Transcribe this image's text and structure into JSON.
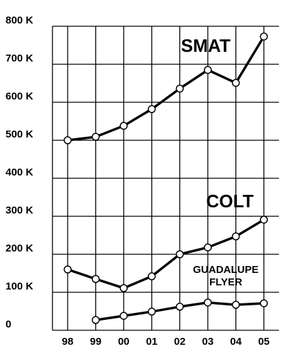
{
  "chart_data": {
    "type": "line",
    "categories": [
      "98",
      "99",
      "00",
      "01",
      "02",
      "03",
      "04",
      "05"
    ],
    "series": [
      {
        "name": "SMAT",
        "color": "#000000",
        "values": [
          500000,
          509000,
          538000,
          582000,
          636000,
          685000,
          651000,
          773000
        ]
      },
      {
        "name": "COLT",
        "color": "#000000",
        "values": [
          160000,
          135000,
          111000,
          142000,
          200000,
          218000,
          247000,
          291000
        ]
      },
      {
        "name": "GUADALUPE FLYER",
        "color": "#000000",
        "values": [
          null,
          27000,
          38000,
          49000,
          62000,
          73000,
          67000,
          71000
        ]
      }
    ],
    "ylim": [
      0,
      800000
    ],
    "yticks": [
      0,
      {
        "value": 100000,
        "label": "100 K"
      },
      {
        "value": 200000,
        "label": "200 K"
      },
      {
        "value": 300000,
        "label": "300 K"
      },
      {
        "value": 400000,
        "label": "400 K"
      },
      {
        "value": 500000,
        "label": "500 K"
      },
      {
        "value": 600000,
        "label": "600 K"
      },
      {
        "value": 700000,
        "label": "700 K"
      },
      {
        "value": 800000,
        "label": "800 K"
      }
    ],
    "grid": true
  }
}
